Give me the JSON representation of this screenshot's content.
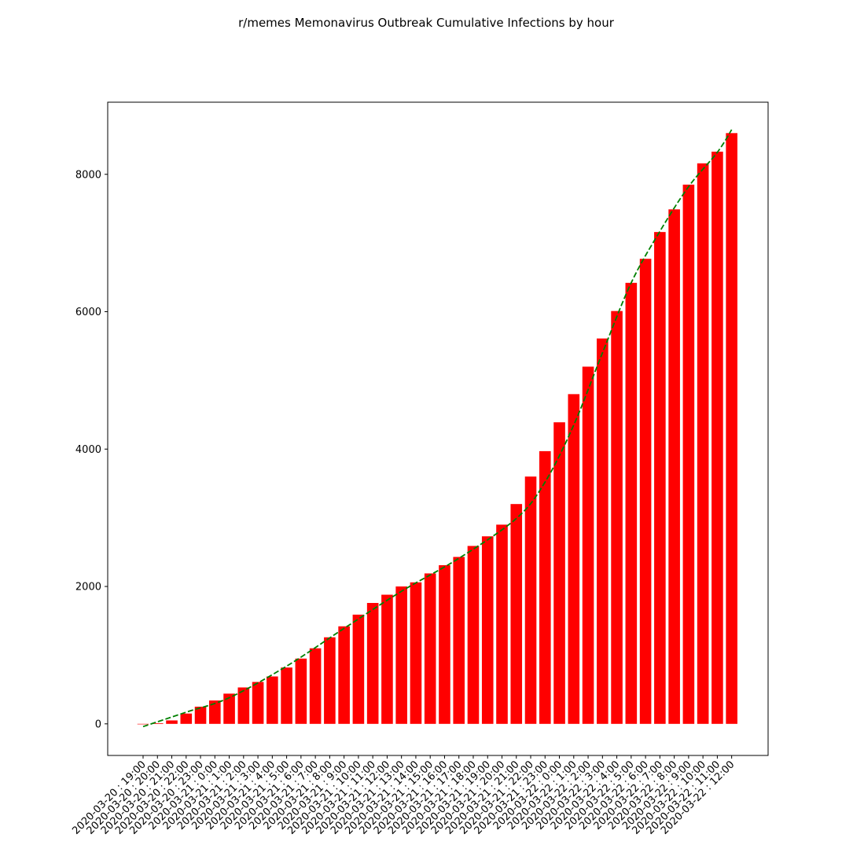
{
  "chart_data": {
    "type": "bar",
    "title": "r/memes Memonavirus Outbreak Cumulative Infections by hour",
    "xlabel": "",
    "ylabel": "",
    "categories": [
      "2020-03-20 : 19:00",
      "2020-03-20 : 20:00",
      "2020-03-20 : 21:00",
      "2020-03-20 : 22:00",
      "2020-03-20 : 23:00",
      "2020-03-21 : 0:00",
      "2020-03-21 : 1:00",
      "2020-03-21 : 2:00",
      "2020-03-21 : 3:00",
      "2020-03-21 : 4:00",
      "2020-03-21 : 5:00",
      "2020-03-21 : 6:00",
      "2020-03-21 : 7:00",
      "2020-03-21 : 8:00",
      "2020-03-21 : 9:00",
      "2020-03-21 : 10:00",
      "2020-03-21 : 11:00",
      "2020-03-21 : 12:00",
      "2020-03-21 : 13:00",
      "2020-03-21 : 14:00",
      "2020-03-21 : 15:00",
      "2020-03-21 : 16:00",
      "2020-03-21 : 17:00",
      "2020-03-21 : 18:00",
      "2020-03-21 : 19:00",
      "2020-03-21 : 20:00",
      "2020-03-21 : 21:00",
      "2020-03-21 : 22:00",
      "2020-03-21 : 23:00",
      "2020-03-22 : 0:00",
      "2020-03-22 : 1:00",
      "2020-03-22 : 2:00",
      "2020-03-22 : 3:00",
      "2020-03-22 : 4:00",
      "2020-03-22 : 5:00",
      "2020-03-22 : 6:00",
      "2020-03-22 : 7:00",
      "2020-03-22 : 8:00",
      "2020-03-22 : 9:00",
      "2020-03-22 : 10:00",
      "2020-03-22 : 11:00",
      "2020-03-22 : 12:00"
    ],
    "values": [
      0,
      10,
      50,
      150,
      250,
      340,
      440,
      530,
      610,
      690,
      820,
      950,
      1100,
      1260,
      1420,
      1590,
      1760,
      1880,
      2000,
      2060,
      2190,
      2310,
      2430,
      2590,
      2730,
      2900,
      3200,
      3600,
      3970,
      4390,
      4800,
      5200,
      5610,
      6010,
      6420,
      6770,
      7160,
      7490,
      7850,
      8160,
      8330,
      8600
    ],
    "trend": {
      "style": "dashed",
      "points": [
        [
          0,
          -40
        ],
        [
          3,
          170
        ],
        [
          6,
          380
        ],
        [
          10,
          840
        ],
        [
          14,
          1390
        ],
        [
          18,
          1930
        ],
        [
          22,
          2410
        ],
        [
          26,
          2990
        ],
        [
          28,
          3520
        ],
        [
          30,
          4350
        ],
        [
          32,
          5400
        ],
        [
          34,
          6420
        ],
        [
          36,
          7170
        ],
        [
          38,
          7820
        ],
        [
          40,
          8320
        ],
        [
          41,
          8650
        ]
      ]
    },
    "ylim": [
      -460,
      9050
    ],
    "yticks": [
      0,
      2000,
      4000,
      6000,
      8000
    ],
    "grid": false,
    "colors": {
      "bars": "#ff0000",
      "trend": "#008000",
      "axes": "#000000"
    }
  }
}
